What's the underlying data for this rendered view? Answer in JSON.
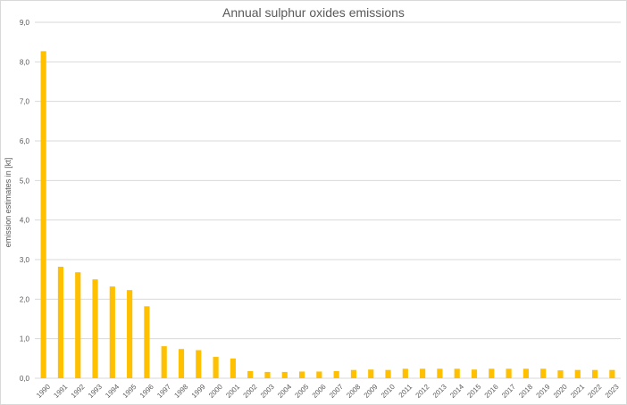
{
  "chart_data": {
    "type": "bar",
    "title": "Annual sulphur oxides emissions",
    "xlabel": "",
    "ylabel": "emission estimates in [kt]",
    "ylim": [
      0,
      9
    ],
    "y_ticks": [
      "0,0",
      "1,0",
      "2,0",
      "3,0",
      "4,0",
      "5,0",
      "6,0",
      "7,0",
      "8,0",
      "9,0"
    ],
    "grid": true,
    "legend": "none",
    "bar_color": "#ffc000",
    "categories": [
      "1990",
      "1991",
      "1992",
      "1993",
      "1994",
      "1995",
      "1996",
      "1997",
      "1998",
      "1999",
      "2000",
      "2001",
      "2002",
      "2003",
      "2004",
      "2005",
      "2006",
      "2007",
      "2008",
      "2009",
      "2010",
      "2011",
      "2012",
      "2013",
      "2014",
      "2015",
      "2016",
      "2017",
      "2018",
      "2019",
      "2020",
      "2021",
      "2022",
      "2023"
    ],
    "values": [
      8.27,
      2.82,
      2.68,
      2.5,
      2.32,
      2.23,
      1.82,
      0.81,
      0.74,
      0.71,
      0.54,
      0.5,
      0.18,
      0.16,
      0.16,
      0.17,
      0.17,
      0.18,
      0.21,
      0.22,
      0.21,
      0.24,
      0.24,
      0.24,
      0.24,
      0.22,
      0.24,
      0.24,
      0.24,
      0.24,
      0.2,
      0.21,
      0.21,
      0.21
    ]
  }
}
